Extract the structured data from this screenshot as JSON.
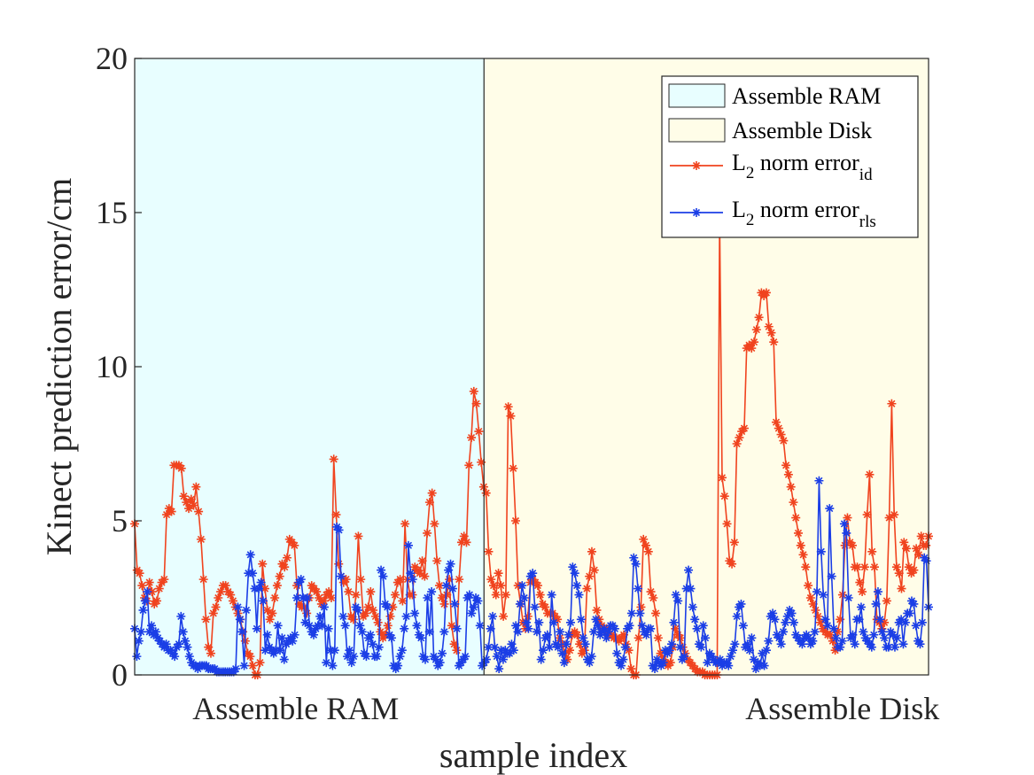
{
  "chart_data": {
    "type": "line",
    "title": "",
    "xlabel": "sample index",
    "ylabel": "Kinect prediction error/cm",
    "xlim": [
      0,
      350
    ],
    "ylim": [
      0,
      20
    ],
    "yticks": [
      0,
      5,
      10,
      15,
      20
    ],
    "xticks": [
      {
        "position": 71,
        "label": "Assemble RAM"
      },
      {
        "position": 312,
        "label": "Assemble Disk"
      }
    ],
    "regions": [
      {
        "name": "Assemble RAM",
        "x0": 0,
        "x1": 154,
        "color": "#e8feff"
      },
      {
        "name": "Assemble Disk",
        "x0": 154,
        "x1": 350,
        "color": "#fffde8"
      }
    ],
    "legend": {
      "position": "top-right",
      "entries": [
        {
          "label": "Assemble RAM",
          "kind": "patch",
          "color": "#e8feff"
        },
        {
          "label": "Assemble Disk",
          "kind": "patch",
          "color": "#fffde8"
        },
        {
          "label": "L",
          "sub1": "2",
          "mid": " norm error",
          "sub2": "id",
          "kind": "line",
          "color": "#f0431e"
        },
        {
          "label": "L",
          "sub1": "2",
          "mid": " norm error",
          "sub2": "rls",
          "kind": "line",
          "color": "#1b3ee6"
        }
      ]
    },
    "series": [
      {
        "name": "L2 norm error_id",
        "color": "#f0431e",
        "values": [
          4.9,
          3.4,
          3.3,
          2.9,
          2.5,
          2.4,
          3.0,
          2.7,
          2.3,
          2.4,
          2.8,
          3.0,
          3.1,
          5.2,
          5.4,
          5.3,
          6.8,
          6.8,
          6.8,
          6.7,
          5.8,
          5.6,
          5.4,
          5.7,
          5.5,
          6.1,
          5.3,
          4.4,
          3.1,
          1.8,
          0.9,
          0.7,
          2.0,
          2.2,
          2.5,
          2.7,
          2.9,
          2.9,
          2.7,
          2.6,
          2.4,
          2.2,
          2.0,
          1.8,
          1.4,
          1.1,
          0.7,
          0.6,
          0.3,
          0.0,
          0.0,
          0.4,
          3.6,
          2.8,
          2.1,
          1.8,
          2.0,
          2.5,
          2.9,
          3.2,
          3.6,
          3.5,
          3.8,
          4.4,
          4.3,
          4.2,
          2.9,
          2.3,
          2.2,
          2.2,
          2.0,
          2.5,
          2.9,
          2.8,
          2.7,
          2.5,
          2.3,
          2.4,
          2.6,
          2.7,
          2.5,
          7.0,
          5.2,
          3.6,
          3.2,
          3.0,
          3.1,
          2.7,
          1.9,
          1.8,
          2.6,
          4.5,
          3.1,
          1.9,
          2.0,
          2.2,
          2.7,
          2.1,
          1.9,
          1.7,
          1.4,
          1.2,
          1.3,
          1.6,
          1.9,
          2.2,
          2.6,
          3.0,
          3.1,
          2.4,
          4.9,
          3.1,
          2.6,
          2.6,
          3.5,
          3.4,
          3.3,
          3.7,
          3.2,
          4.6,
          5.6,
          5.9,
          4.9,
          3.7,
          2.9,
          2.5,
          2.3,
          2.6,
          3.1,
          1.6,
          1.0,
          0.8,
          3.1,
          4.3,
          4.5,
          4.3,
          6.8,
          7.7,
          9.2,
          8.8,
          7.9,
          6.9,
          6.1,
          5.9,
          4.0,
          3.1,
          2.9,
          2.6,
          3.3,
          2.9,
          1.9,
          2.6,
          8.7,
          8.4,
          6.7,
          5.0,
          2.9,
          2.3,
          1.7,
          1.5,
          1.9,
          3.0,
          3.1,
          3.0,
          2.9,
          2.6,
          2.3,
          2.2,
          2.0,
          2.0,
          2.0,
          1.9,
          1.8,
          1.2,
          1.0,
          0.7,
          0.5,
          0.8,
          1.3,
          1.4,
          1.3,
          1.0,
          0.7,
          0.8,
          2.8,
          3.2,
          4.0,
          3.4,
          2.1,
          1.8,
          1.6,
          1.4,
          1.5,
          1.3,
          1.3,
          1.2,
          1.2,
          1.1,
          1.2,
          1.3,
          1.0,
          0.8,
          0.2,
          0.0,
          0.0,
          1.2,
          2.2,
          4.4,
          4.2,
          4.0,
          2.7,
          2.5,
          2.0,
          1.2,
          0.7,
          0.5,
          0.4,
          0.3,
          0.4,
          0.9,
          1.5,
          1.3,
          1.2,
          0.9,
          0.7,
          0.5,
          0.4,
          0.3,
          0.2,
          0.1,
          0.1,
          0.1,
          0.0,
          0.0,
          0.0,
          0.0,
          0.0,
          0.0,
          14.8,
          6.4,
          5.8,
          4.9,
          3.7,
          3.6,
          4.3,
          7.5,
          7.7,
          7.9,
          8.0,
          10.6,
          10.7,
          10.6,
          10.8,
          11.2,
          11.6,
          12.4,
          12.3,
          12.4,
          11.3,
          11.1,
          10.8,
          8.2,
          8.0,
          7.8,
          7.6,
          6.8,
          6.5,
          6.1,
          5.6,
          5.1,
          4.6,
          4.2,
          3.9,
          3.5,
          2.9,
          2.5,
          2.3,
          2.1,
          1.9,
          1.7,
          1.5,
          1.4,
          1.3,
          1.3,
          1.1,
          0.8,
          1.4,
          1.8,
          2.6,
          4.2,
          5.1,
          4.3,
          4.2,
          3.5,
          3.5,
          3.0,
          2.7,
          3.5,
          5.2,
          6.5,
          4.0,
          3.5,
          1.8,
          1.7,
          1.5,
          1.7,
          2.4,
          5.1,
          8.8,
          5.2,
          3.5,
          3.3,
          2.8,
          4.3,
          4.1,
          3.5,
          3.3,
          3.4,
          4.1,
          3.9,
          4.5,
          4.2,
          4.2,
          4.5
        ]
      },
      {
        "name": "L2 norm error_rls",
        "color": "#1b3ee6",
        "values": [
          1.5,
          0.6,
          1.1,
          1.4,
          2.1,
          2.4,
          2.7,
          1.4,
          1.6,
          1.3,
          1.4,
          1.2,
          1.1,
          1.0,
          0.9,
          1.0,
          0.8,
          0.8,
          0.7,
          0.6,
          0.9,
          1.0,
          1.9,
          1.4,
          1.1,
          0.9,
          0.6,
          0.4,
          0.3,
          0.3,
          0.2,
          0.3,
          0.3,
          0.3,
          0.3,
          0.2,
          0.2,
          0.2,
          0.2,
          0.1,
          0.1,
          0.1,
          0.1,
          0.1,
          0.1,
          0.1,
          0.1,
          0.1,
          0.2,
          2.2,
          1.8,
          1.4,
          0.3,
          2.1,
          3.3,
          3.9,
          3.3,
          2.8,
          1.5,
          2.8,
          3.0,
          2.4,
          0.8,
          1.3,
          0.9,
          0.8,
          0.7,
          0.8,
          1.6,
          0.8,
          1.2,
          0.5,
          1.0,
          1.1,
          1.2,
          1.1,
          1.3,
          2.5,
          3.0,
          3.1,
          2.5,
          1.7,
          2.5,
          1.6,
          1.4,
          1.3,
          1.5,
          1.6,
          1.9,
          1.6,
          2.2,
          0.4,
          1.5,
          0.8,
          0.3,
          0.8,
          4.8,
          4.7,
          3.2,
          1.9,
          1.6,
          0.6,
          0.8,
          0.4,
          0.6,
          2.2,
          2.1,
          1.6,
          1.4,
          0.7,
          0.6,
          1.2,
          1.3,
          1.0,
          0.6,
          0.6,
          0.9,
          3.4,
          3.2,
          2.3,
          2.2,
          1.3,
          1.2,
          0.3,
          0.2,
          0.3,
          0.6,
          0.8,
          1.5,
          1.9,
          4.2,
          3.3,
          3.1,
          2.0,
          1.6,
          1.3,
          1.2,
          0.6,
          0.5,
          2.5,
          1.4,
          2.7,
          0.6,
          0.5,
          0.3,
          0.4,
          0.7,
          1.4,
          2.9,
          3.4,
          3.6,
          2.8,
          2.3,
          1.5,
          0.3,
          0.4,
          0.5,
          0.6,
          2.5,
          2.6,
          2.0,
          2.2,
          2.5,
          2.4,
          1.6,
          0.3,
          0.4,
          0.5,
          0.9,
          1.5,
          1.9,
          0.9,
          0.6,
          0.2,
          0.8,
          0.5,
          0.8,
          0.7,
          0.7,
          1.0,
          0.8,
          1.6,
          1.4,
          2.3,
          2.9,
          2.5,
          1.7,
          1.5,
          3.2,
          3.3,
          2.2,
          1.4,
          1.7,
          0.5,
          0.8,
          1.2,
          1.3,
          0.9,
          2.6,
          1.7,
          1.0,
          0.9,
          1.4,
          0.7,
          0.4,
          1.0,
          1.3,
          1.7,
          3.5,
          3.3,
          2.9,
          2.6,
          1.8,
          1.2,
          1.0,
          0.5,
          0.4,
          0.6,
          1.4,
          1.8,
          1.6,
          1.3,
          1.4,
          1.5,
          1.2,
          1.4,
          1.6,
          1.6,
          1.5,
          0.7,
          0.4,
          0.3,
          0.5,
          0.9,
          1.5,
          1.6,
          2.0,
          3.8,
          3.6,
          2.8,
          2.0,
          1.6,
          1.4,
          1.3,
          1.5,
          1.5,
          0.3,
          0.2,
          0.5,
          0.4,
          0.3,
          0.4,
          0.8,
          0.7,
          0.8,
          1.0,
          1.7,
          2.6,
          2.4,
          0.9,
          0.5,
          0.6,
          2.8,
          3.4,
          2.8,
          2.2,
          1.8,
          1.5,
          1.0,
          0.9,
          1.6,
          1.2,
          0.4,
          0.7,
          0.6,
          0.5,
          0.4,
          0.4,
          0.5,
          0.3,
          0.4,
          0.4,
          0.3,
          0.6,
          0.8,
          1.0,
          1.9,
          2.2,
          2.3,
          1.6,
          0.9,
          1.0,
          0.8,
          1.2,
          0.5,
          0.2,
          0.4,
          0.3,
          0.7,
          0.3,
          0.8,
          1.1,
          1.9,
          2.0,
          1.8,
          1.3,
          1.2,
          1.0,
          1.4,
          1.7,
          1.9,
          2.1,
          2.0,
          1.7,
          1.3,
          1.2,
          1.1,
          1.0,
          1.2,
          1.3,
          1.2,
          1.0,
          1.1,
          1.4,
          2.7,
          6.3,
          4.0,
          2.6,
          1.8,
          1.6,
          5.4,
          3.2,
          1.5,
          1.2,
          0.9,
          0.9,
          1.1,
          4.9,
          4.6,
          2.5,
          1.2,
          1.3,
          1.0,
          1.8,
          1.8,
          2.2,
          1.4,
          1.2,
          1.1,
          1.0,
          0.9,
          1.3,
          2.3,
          2.7,
          1.8,
          1.4,
          1.2,
          0.9,
          0.9,
          1.4,
          1.3,
          0.9,
          1.2,
          1.7,
          1.8,
          1.0,
          1.7,
          2.0,
          2.0,
          2.4,
          2.3,
          1.6,
          1.1,
          1.0,
          1.7,
          3.8,
          3.7,
          2.2
        ]
      }
    ]
  }
}
